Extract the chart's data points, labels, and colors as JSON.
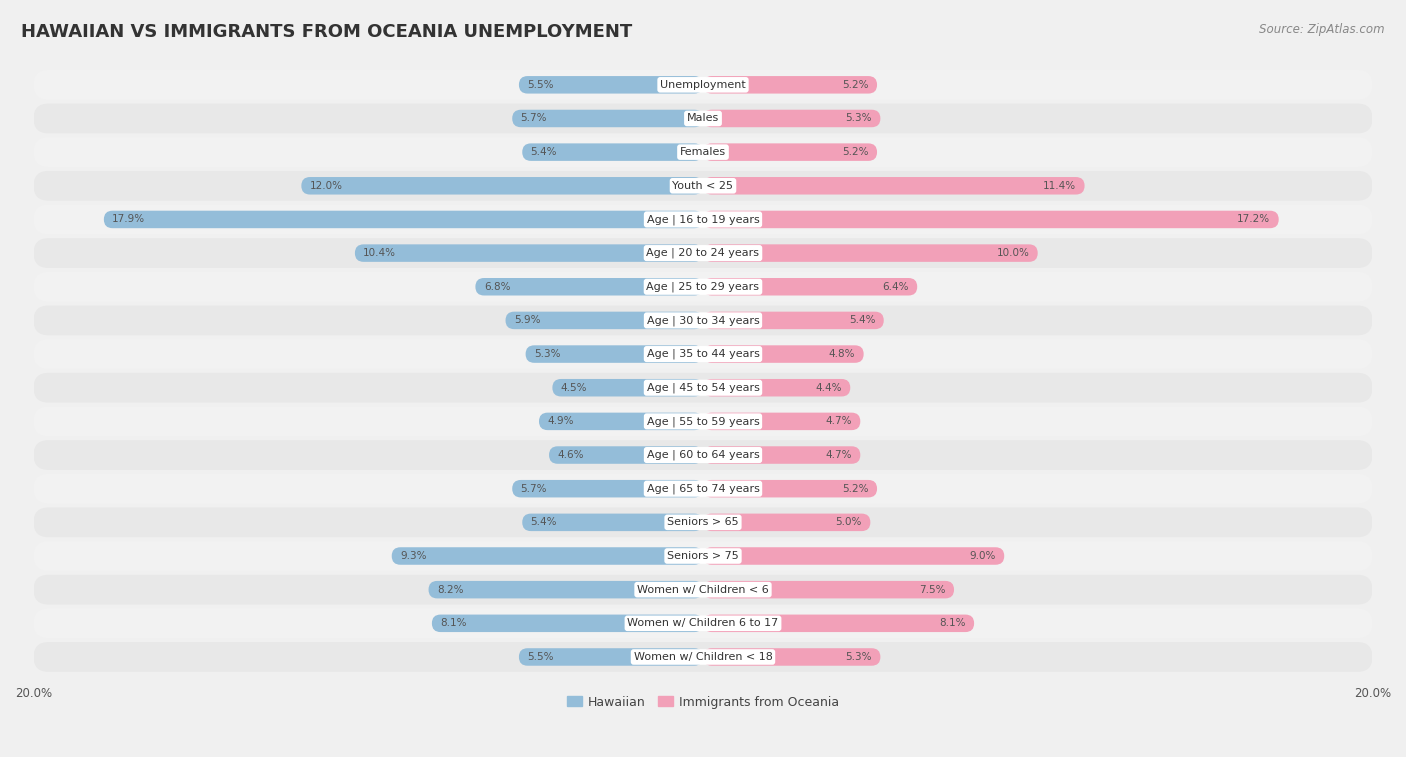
{
  "title": "HAWAIIAN VS IMMIGRANTS FROM OCEANIA UNEMPLOYMENT",
  "source": "Source: ZipAtlas.com",
  "categories": [
    "Unemployment",
    "Males",
    "Females",
    "Youth < 25",
    "Age | 16 to 19 years",
    "Age | 20 to 24 years",
    "Age | 25 to 29 years",
    "Age | 30 to 34 years",
    "Age | 35 to 44 years",
    "Age | 45 to 54 years",
    "Age | 55 to 59 years",
    "Age | 60 to 64 years",
    "Age | 65 to 74 years",
    "Seniors > 65",
    "Seniors > 75",
    "Women w/ Children < 6",
    "Women w/ Children 6 to 17",
    "Women w/ Children < 18"
  ],
  "hawaiian": [
    5.5,
    5.7,
    5.4,
    12.0,
    17.9,
    10.4,
    6.8,
    5.9,
    5.3,
    4.5,
    4.9,
    4.6,
    5.7,
    5.4,
    9.3,
    8.2,
    8.1,
    5.5
  ],
  "oceania": [
    5.2,
    5.3,
    5.2,
    11.4,
    17.2,
    10.0,
    6.4,
    5.4,
    4.8,
    4.4,
    4.7,
    4.7,
    5.2,
    5.0,
    9.0,
    7.5,
    8.1,
    5.3
  ],
  "hawaiian_color": "#94bdd9",
  "oceania_color": "#f2a0b8",
  "row_color_odd": "#f2f2f2",
  "row_color_even": "#e8e8e8",
  "hawaiian_label": "Hawaiian",
  "oceania_label": "Immigrants from Oceania",
  "bg_color": "#f0f0f0",
  "xmax": 20.0,
  "title_fontsize": 13,
  "source_fontsize": 8.5,
  "label_fontsize": 8.0,
  "value_fontsize": 7.5,
  "legend_fontsize": 9,
  "axis_fontsize": 8.5
}
